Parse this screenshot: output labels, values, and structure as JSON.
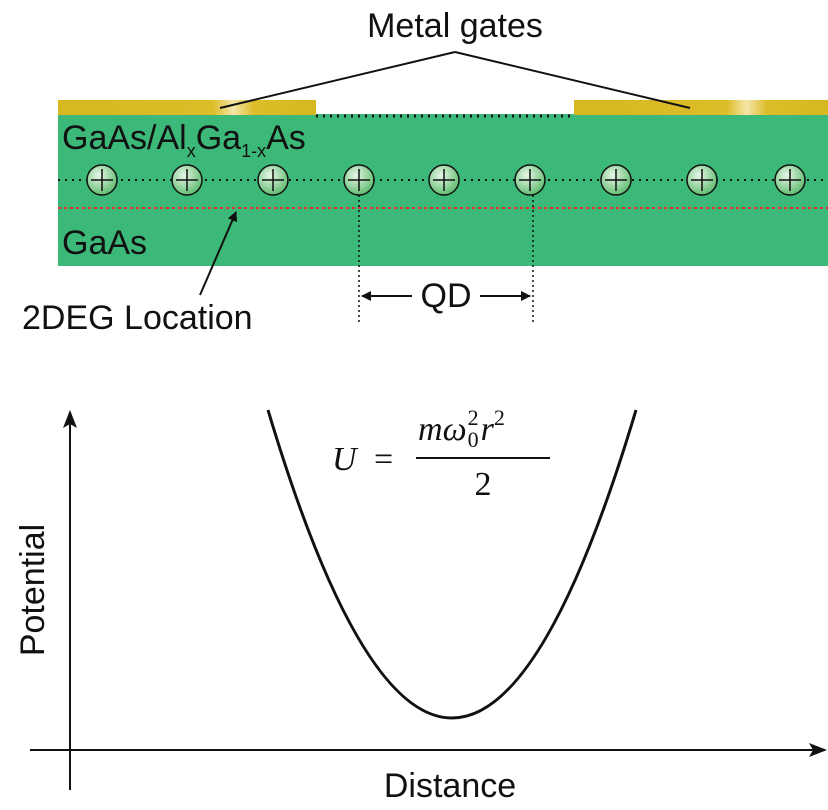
{
  "top": {
    "gates_label": "Metal gates",
    "layer_top": {
      "a": "GaAs/Al",
      "sub_x": "x",
      "b": "Ga",
      "sub_1x": "1-x",
      "c": "As"
    },
    "layer_bottom": "GaAs",
    "twodeg_label": "2DEG Location",
    "qd_label": "QD"
  },
  "plot": {
    "y_label": "Potential",
    "x_label": "Distance",
    "formula": {
      "lhs": "U",
      "eq": "=",
      "m": "m",
      "omega": "ω",
      "sub0": "0",
      "sup_w": "2",
      "r": "r",
      "sup_r": "2",
      "den": "2"
    }
  }
}
